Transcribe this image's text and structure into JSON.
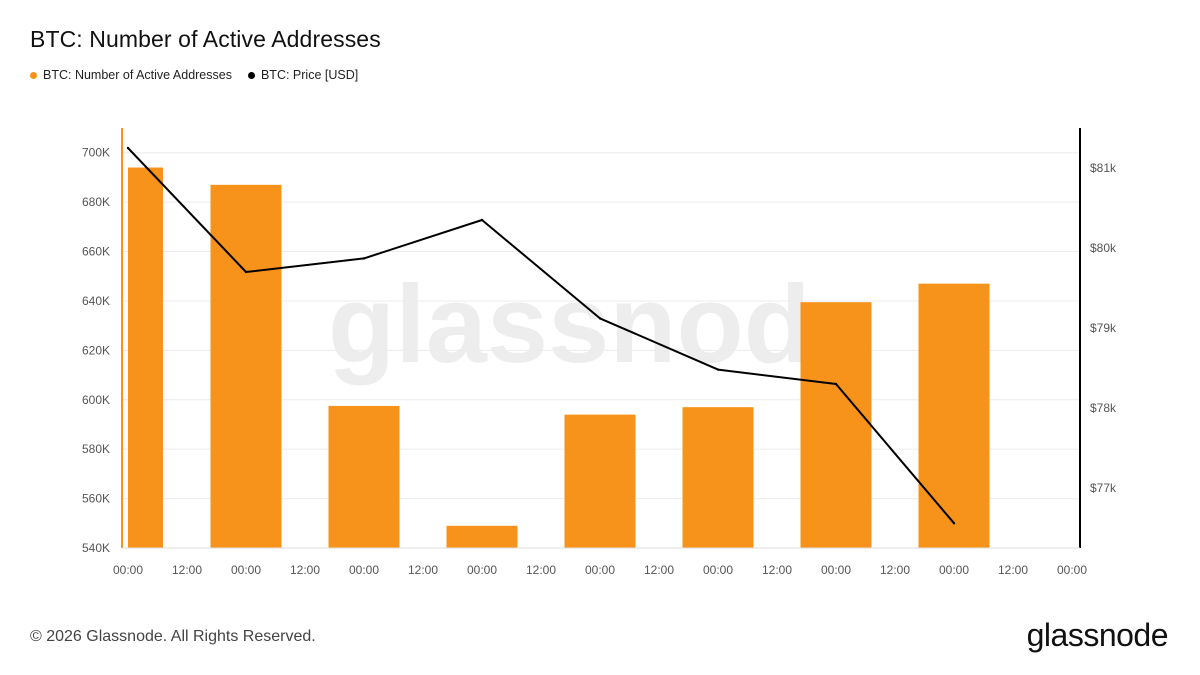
{
  "title": "BTC: Number of Active Addresses",
  "legend": [
    {
      "label": "BTC: Number of Active Addresses",
      "color": "#f7931a"
    },
    {
      "label": "BTC: Price [USD]",
      "color": "#000000"
    }
  ],
  "watermark": "glassnode",
  "footer": "© 2026 Glassnode. All Rights Reserved.",
  "brand": "glassnode",
  "chart_data": {
    "type": "bar",
    "x_tick_labels": [
      "00:00",
      "12:00",
      "00:00",
      "12:00",
      "00:00",
      "12:00",
      "00:00",
      "12:00",
      "00:00",
      "12:00",
      "00:00",
      "12:00",
      "00:00",
      "12:00",
      "00:00",
      "12:00",
      "00:00"
    ],
    "series": [
      {
        "name": "BTC: Number of Active Addresses",
        "type": "bar",
        "axis": "left",
        "color": "#f7931a",
        "values": [
          694000,
          687000,
          597500,
          549000,
          594000,
          597000,
          639500,
          647000
        ]
      },
      {
        "name": "BTC: Price [USD]",
        "type": "line",
        "axis": "right",
        "color": "#000000",
        "values": [
          81250,
          79700,
          79870,
          80350,
          79120,
          78480,
          78300,
          76560
        ]
      }
    ],
    "left_axis": {
      "ylim": [
        540000,
        710000
      ],
      "ticks": [
        540000,
        560000,
        580000,
        600000,
        620000,
        640000,
        660000,
        680000,
        700000
      ],
      "tick_labels": [
        "540K",
        "560K",
        "580K",
        "600K",
        "620K",
        "640K",
        "660K",
        "680K",
        "700K"
      ],
      "color": "#f7931a"
    },
    "right_axis": {
      "ylim": [
        76250,
        81500
      ],
      "ticks": [
        77000,
        78000,
        79000,
        80000,
        81000
      ],
      "tick_labels": [
        "$77k",
        "$78k",
        "$79k",
        "$80k",
        "$81k"
      ],
      "color": "#000000"
    },
    "grid": true
  }
}
